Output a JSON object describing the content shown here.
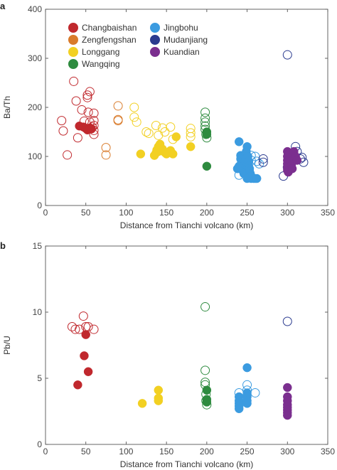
{
  "chart_data": [
    {
      "panel": "a",
      "type": "scatter",
      "xlabel": "Distance from Tianchi volcano (km)",
      "ylabel": "Ba/Th",
      "xlim": [
        0,
        350
      ],
      "ylim": [
        0,
        400
      ],
      "xticks": [
        0,
        50,
        100,
        150,
        200,
        250,
        300,
        350
      ],
      "yticks": [
        0,
        100,
        200,
        300,
        400
      ],
      "grid": false,
      "legend": {
        "placement": "top-left",
        "columns": 2,
        "entries": [
          {
            "name": "Changbaishan",
            "color": "#c0282d"
          },
          {
            "name": "Zengfengshan",
            "color": "#d97b2b"
          },
          {
            "name": "Longgang",
            "color": "#f2d022"
          },
          {
            "name": "Wangqing",
            "color": "#2e8b3f"
          },
          {
            "name": "Jingbohu",
            "color": "#3b9be0"
          },
          {
            "name": "Mudanjiang",
            "color": "#2b3b8f"
          },
          {
            "name": "Kuandian",
            "color": "#7b2f8f"
          }
        ]
      },
      "series": [
        {
          "name": "Changbaishan",
          "color": "#c0282d",
          "marker": "open",
          "points": [
            [
              20,
              173
            ],
            [
              22,
              152
            ],
            [
              27,
              103
            ],
            [
              35,
              253
            ],
            [
              38,
              213
            ],
            [
              40,
              138
            ],
            [
              45,
              195
            ],
            [
              48,
              172
            ],
            [
              52,
              225
            ],
            [
              52,
              220
            ],
            [
              55,
              232
            ],
            [
              53,
              190
            ],
            [
              55,
              170
            ],
            [
              58,
              160
            ],
            [
              60,
              188
            ],
            [
              60,
              173
            ],
            [
              60,
              163
            ],
            [
              60,
              153
            ],
            [
              60,
              145
            ]
          ]
        },
        {
          "name": "Changbaishan",
          "color": "#c0282d",
          "marker": "filled",
          "points": [
            [
              42,
              162
            ],
            [
              47,
              160
            ],
            [
              50,
              157
            ],
            [
              52,
              154
            ],
            [
              55,
              158
            ],
            [
              57,
              156
            ]
          ]
        },
        {
          "name": "Zengfengshan",
          "color": "#d97b2b",
          "marker": "open",
          "points": [
            [
              75,
              118
            ],
            [
              75,
              103
            ],
            [
              90,
              203
            ],
            [
              90,
              175
            ],
            [
              90,
              173
            ]
          ]
        },
        {
          "name": "Longgang",
          "color": "#f2d022",
          "marker": "open",
          "points": [
            [
              110,
              200
            ],
            [
              110,
              180
            ],
            [
              113,
              170
            ],
            [
              125,
              150
            ],
            [
              128,
              147
            ],
            [
              137,
              163
            ],
            [
              140,
              143
            ],
            [
              145,
              158
            ],
            [
              148,
              150
            ],
            [
              155,
              160
            ],
            [
              158,
              135
            ],
            [
              180,
              157
            ],
            [
              180,
              148
            ],
            [
              180,
              140
            ]
          ]
        },
        {
          "name": "Longgang",
          "color": "#f2d022",
          "marker": "filled",
          "points": [
            [
              118,
              105
            ],
            [
              135,
              102
            ],
            [
              137,
              107
            ],
            [
              138,
              113
            ],
            [
              140,
              110
            ],
            [
              140,
              120
            ],
            [
              142,
              125
            ],
            [
              145,
              115
            ],
            [
              148,
              108
            ],
            [
              150,
              105
            ],
            [
              155,
              112
            ],
            [
              158,
              105
            ],
            [
              162,
              140
            ],
            [
              180,
              120
            ]
          ]
        },
        {
          "name": "Wangqing",
          "color": "#2e8b3f",
          "marker": "open",
          "points": [
            [
              198,
              190
            ],
            [
              198,
              178
            ],
            [
              198,
              170
            ],
            [
              198,
              162
            ],
            [
              198,
              155
            ],
            [
              199,
              145
            ],
            [
              200,
              138
            ]
          ]
        },
        {
          "name": "Wangqing",
          "color": "#2e8b3f",
          "marker": "filled",
          "points": [
            [
              200,
              150
            ],
            [
              200,
              145
            ],
            [
              200,
              80
            ]
          ]
        },
        {
          "name": "Jingbohu",
          "color": "#3b9be0",
          "marker": "open",
          "points": [
            [
              240,
              62
            ],
            [
              245,
              88
            ],
            [
              250,
              62
            ],
            [
              255,
              102
            ],
            [
              255,
              92
            ],
            [
              260,
              100
            ],
            [
              262,
              90
            ],
            [
              265,
              85
            ]
          ]
        },
        {
          "name": "Jingbohu",
          "color": "#3b9be0",
          "marker": "filled",
          "points": [
            [
              240,
              130
            ],
            [
              242,
              102
            ],
            [
              242,
              95
            ],
            [
              243,
              88
            ],
            [
              243,
              82
            ],
            [
              244,
              75
            ],
            [
              245,
              70
            ],
            [
              246,
              65
            ],
            [
              247,
              85
            ],
            [
              248,
              95
            ],
            [
              249,
              110
            ],
            [
              250,
              120
            ],
            [
              251,
              100
            ],
            [
              252,
              90
            ],
            [
              252,
              80
            ],
            [
              253,
              75
            ],
            [
              253,
              70
            ],
            [
              254,
              65
            ],
            [
              255,
              60
            ],
            [
              250,
              55
            ],
            [
              255,
              55
            ],
            [
              258,
              55
            ],
            [
              260,
              55
            ],
            [
              262,
              55
            ],
            [
              240,
              80
            ],
            [
              238,
              75
            ]
          ]
        },
        {
          "name": "Mudanjiang",
          "color": "#2b3b8f",
          "marker": "open",
          "points": [
            [
              270,
              95
            ],
            [
              270,
              88
            ],
            [
              295,
              60
            ],
            [
              300,
              78
            ],
            [
              300,
              307
            ],
            [
              305,
              98
            ],
            [
              310,
              120
            ],
            [
              312,
              110
            ],
            [
              316,
              95
            ],
            [
              318,
              98
            ],
            [
              320,
              88
            ]
          ]
        },
        {
          "name": "Kuandian",
          "color": "#7b2f8f",
          "marker": "filled",
          "points": [
            [
              300,
              110
            ],
            [
              300,
              100
            ],
            [
              300,
              92
            ],
            [
              300,
              85
            ],
            [
              300,
              78
            ],
            [
              300,
              72
            ],
            [
              301,
              68
            ],
            [
              302,
              105
            ],
            [
              303,
              98
            ],
            [
              304,
              90
            ],
            [
              305,
              82
            ],
            [
              306,
              75
            ],
            [
              308,
              110
            ],
            [
              310,
              100
            ],
            [
              312,
              92
            ]
          ]
        }
      ]
    },
    {
      "panel": "b",
      "type": "scatter",
      "xlabel": "Distance from Tianchi volcano (km)",
      "ylabel": "Pb/U",
      "xlim": [
        0,
        350
      ],
      "ylim": [
        0,
        15
      ],
      "xticks": [
        0,
        50,
        100,
        150,
        200,
        250,
        300,
        350
      ],
      "yticks": [
        0,
        5,
        10,
        15
      ],
      "grid": false,
      "series": [
        {
          "name": "Changbaishan",
          "color": "#c0282d",
          "marker": "open",
          "points": [
            [
              33,
              8.9
            ],
            [
              37,
              8.7
            ],
            [
              42,
              8.7
            ],
            [
              47,
              9.7
            ],
            [
              50,
              8.9
            ],
            [
              53,
              8.9
            ],
            [
              60,
              8.7
            ]
          ]
        },
        {
          "name": "Changbaishan",
          "color": "#c0282d",
          "marker": "filled",
          "points": [
            [
              40,
              4.5
            ],
            [
              48,
              6.7
            ],
            [
              50,
              8.3
            ],
            [
              53,
              5.5
            ]
          ]
        },
        {
          "name": "Longgang",
          "color": "#f2d022",
          "marker": "filled",
          "points": [
            [
              120,
              3.1
            ],
            [
              140,
              4.1
            ],
            [
              140,
              3.5
            ],
            [
              140,
              3.3
            ]
          ]
        },
        {
          "name": "Wangqing",
          "color": "#2e8b3f",
          "marker": "open",
          "points": [
            [
              198,
              10.4
            ],
            [
              198,
              5.6
            ],
            [
              198,
              4.7
            ],
            [
              198,
              4.5
            ],
            [
              199,
              3.8
            ],
            [
              199,
              3.3
            ],
            [
              200,
              3.0
            ]
          ]
        },
        {
          "name": "Wangqing",
          "color": "#2e8b3f",
          "marker": "filled",
          "points": [
            [
              200,
              4.1
            ],
            [
              200,
              3.4
            ],
            [
              200,
              3.2
            ]
          ]
        },
        {
          "name": "Jingbohu",
          "color": "#3b9be0",
          "marker": "open",
          "points": [
            [
              240,
              3.9
            ],
            [
              250,
              4.5
            ],
            [
              250,
              4.1
            ],
            [
              260,
              3.9
            ]
          ]
        },
        {
          "name": "Jingbohu",
          "color": "#3b9be0",
          "marker": "filled",
          "points": [
            [
              240,
              3.6
            ],
            [
              240,
              3.3
            ],
            [
              240,
              3.1
            ],
            [
              240,
              2.9
            ],
            [
              240,
              2.7
            ],
            [
              250,
              5.8
            ],
            [
              250,
              3.9
            ],
            [
              250,
              3.6
            ],
            [
              250,
              3.3
            ],
            [
              250,
              3.1
            ]
          ]
        },
        {
          "name": "Mudanjiang",
          "color": "#2b3b8f",
          "marker": "open",
          "points": [
            [
              300,
              9.3
            ]
          ]
        },
        {
          "name": "Kuandian",
          "color": "#7b2f8f",
          "marker": "filled",
          "points": [
            [
              300,
              4.3
            ],
            [
              300,
              3.6
            ],
            [
              300,
              3.3
            ],
            [
              300,
              3.0
            ],
            [
              300,
              2.8
            ],
            [
              300,
              2.6
            ],
            [
              300,
              2.4
            ],
            [
              300,
              2.2
            ]
          ]
        }
      ]
    }
  ],
  "panel_letters": {
    "a": "a",
    "b": "b"
  }
}
